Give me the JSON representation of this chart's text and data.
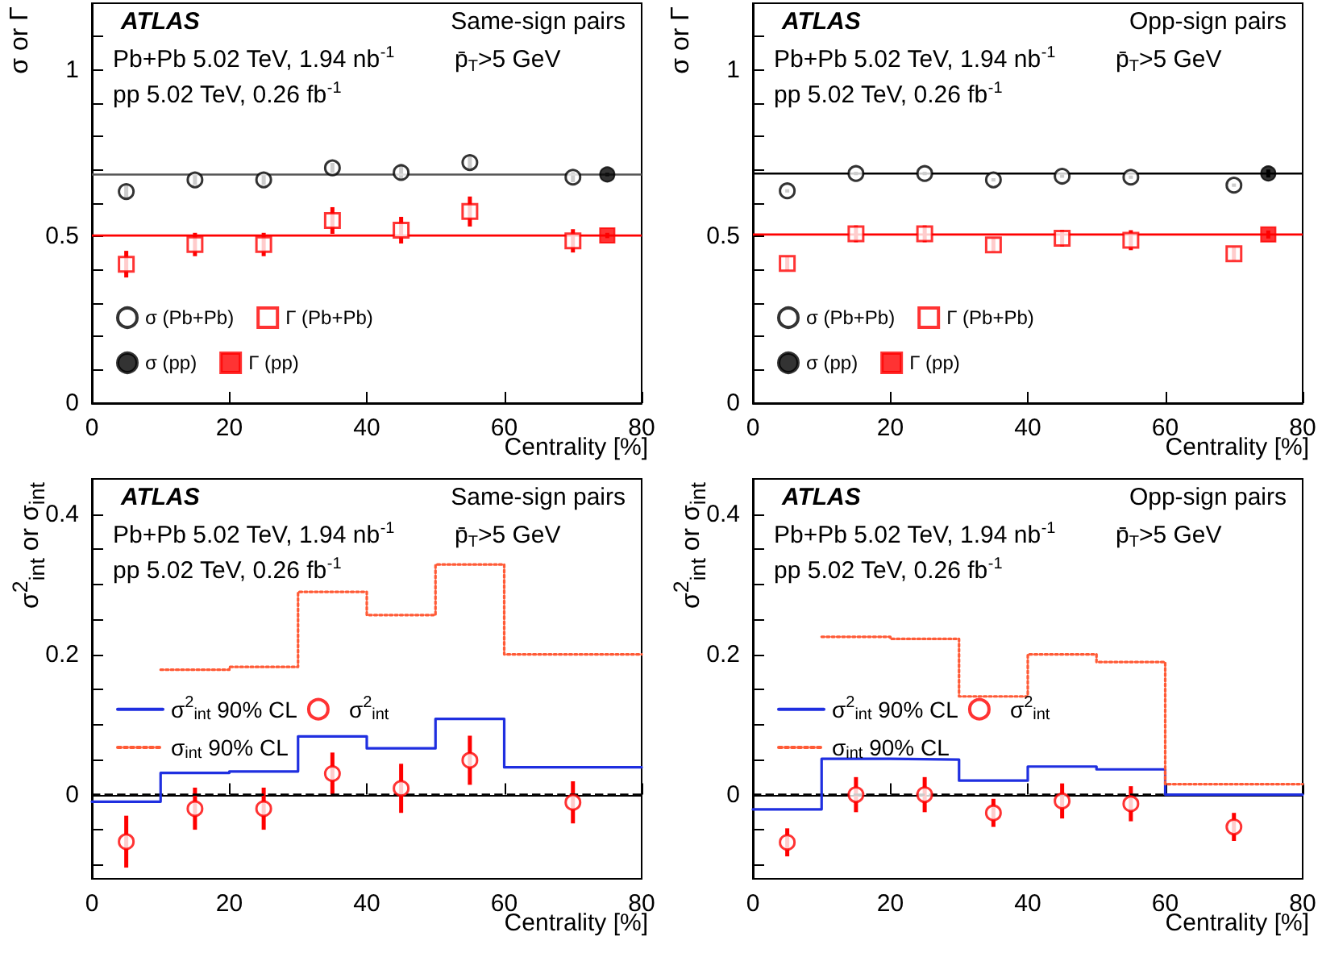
{
  "chart_data": [
    {
      "type": "scatter",
      "title": "Same-sign pairs",
      "ylabel": "σ or Γ",
      "xlabel": "Centrality [%]",
      "annotations": [
        "ATLAS",
        "Pb+Pb 5.02 TeV, 1.94 nb$^{-1}$",
        "p̄$_{T}$>5 GeV",
        "pp 5.02 TeV, 0.26 fb$^{-1}$"
      ],
      "xlim": [
        0,
        80
      ],
      "xticks": [
        0,
        20,
        40,
        60,
        80
      ],
      "ylim": [
        0,
        1.2
      ],
      "yticks": [
        0,
        {
          "value": 0.1,
          "label": null
        },
        {
          "value": 0.2,
          "label": null
        },
        {
          "value": 0.3,
          "label": null
        },
        {
          "value": 0.4,
          "label": null
        },
        0.5,
        {
          "value": 0.6,
          "label": null
        },
        {
          "value": 0.7,
          "label": null
        },
        {
          "value": 0.8,
          "label": null
        },
        {
          "value": 0.9,
          "label": null
        },
        1,
        {
          "value": 1.1,
          "label": null
        }
      ],
      "legend": "bottom left",
      "ref_lines": [
        {
          "axis": "y",
          "value": 0.686,
          "color": "#555555"
        },
        {
          "axis": "y",
          "value": 0.503,
          "color": "#ff0000"
        }
      ],
      "series": [
        {
          "name": "σ (Pb+Pb)",
          "marker": "circle",
          "color": "#000000",
          "x": [
            5,
            15,
            25,
            35,
            45,
            55,
            70
          ],
          "values": [
            0.635,
            0.67,
            0.67,
            0.706,
            0.692,
            0.722,
            0.678
          ],
          "errors": [
            0.02,
            0.015,
            0.015,
            0.015,
            0.02,
            0.02,
            0.015
          ]
        },
        {
          "name": "Γ (Pb+Pb)",
          "marker": "square",
          "color": "#ff0000",
          "x": [
            5,
            15,
            25,
            35,
            45,
            55,
            70
          ],
          "values": [
            0.417,
            0.476,
            0.476,
            0.548,
            0.519,
            0.575,
            0.487
          ],
          "errors": [
            0.04,
            0.035,
            0.035,
            0.04,
            0.04,
            0.045,
            0.035
          ]
        },
        {
          "name": "σ (pp)",
          "marker": "circle",
          "color": "#000000",
          "x": [
            75
          ],
          "values": [
            0.686
          ],
          "errors": [
            0.005
          ]
        },
        {
          "name": "Γ (pp)",
          "marker": "square",
          "color": "#ff0000",
          "x": [
            75
          ],
          "values": [
            0.503
          ],
          "errors": [
            0.008
          ]
        }
      ]
    },
    {
      "type": "scatter",
      "title": "Opp-sign pairs",
      "ylabel": "σ or Γ",
      "xlabel": "Centrality [%]",
      "annotations": [
        "ATLAS",
        "Pb+Pb 5.02 TeV, 1.94 nb$^{-1}$",
        "p̄$_{T}$>5 GeV",
        "pp 5.02 TeV, 0.26 fb$^{-1}$"
      ],
      "xlim": [
        0,
        80
      ],
      "xticks": [
        0,
        20,
        40,
        60,
        80
      ],
      "ylim": [
        0,
        1.2
      ],
      "yticks": [
        0,
        {
          "value": 0.1,
          "label": null
        },
        {
          "value": 0.2,
          "label": null
        },
        {
          "value": 0.3,
          "label": null
        },
        {
          "value": 0.4,
          "label": null
        },
        0.5,
        {
          "value": 0.6,
          "label": null
        },
        {
          "value": 0.7,
          "label": null
        },
        {
          "value": 0.8,
          "label": null
        },
        {
          "value": 0.9,
          "label": null
        },
        1,
        {
          "value": 1.1,
          "label": null
        }
      ],
      "legend": "bottom left",
      "ref_lines": [
        {
          "axis": "y",
          "value": 0.689,
          "color": "#000000"
        },
        {
          "axis": "y",
          "value": 0.506,
          "color": "#ff0000"
        }
      ],
      "series": [
        {
          "name": "σ (Pb+Pb)",
          "marker": "circle",
          "color": "#000000",
          "x": [
            5,
            15,
            25,
            35,
            45,
            55,
            70
          ],
          "values": [
            0.637,
            0.689,
            0.689,
            0.67,
            0.681,
            0.678,
            0.654
          ],
          "errors": [
            0.005,
            0.005,
            0.005,
            0.005,
            0.005,
            0.005,
            0.005
          ]
        },
        {
          "name": "Γ (Pb+Pb)",
          "marker": "square",
          "color": "#ff0000",
          "x": [
            5,
            15,
            25,
            35,
            45,
            55,
            70
          ],
          "values": [
            0.419,
            0.508,
            0.508,
            0.475,
            0.495,
            0.489,
            0.448
          ],
          "errors": [
            0.02,
            0.025,
            0.025,
            0.02,
            0.025,
            0.03,
            0.02
          ]
        },
        {
          "name": "σ (pp)",
          "marker": "circle",
          "color": "#000000",
          "x": [
            75
          ],
          "values": [
            0.689
          ],
          "errors": [
            0.012
          ]
        },
        {
          "name": "Γ (pp)",
          "marker": "square",
          "color": "#ff0000",
          "x": [
            75
          ],
          "values": [
            0.506
          ],
          "errors": [
            0.012
          ]
        }
      ]
    },
    {
      "type": "scatter",
      "title": "Same-sign pairs",
      "ylabel": "σ$^{2}$$_{int}$ or σ$_{int}$",
      "xlabel": "Centrality [%]",
      "annotations": [
        "ATLAS",
        "Pb+Pb 5.02 TeV, 1.94 nb$^{-1}$",
        "p̄$_{T}$>5 GeV",
        "pp 5.02 TeV, 0.26 fb$^{-1}$"
      ],
      "xlim": [
        0,
        80
      ],
      "xticks": [
        0,
        20,
        40,
        60,
        80
      ],
      "ylim": [
        -0.12,
        0.45
      ],
      "yticks": [
        {
          "value": -0.1,
          "label": null
        },
        {
          "value": -0.05,
          "label": null
        },
        0,
        {
          "value": 0.05,
          "label": null
        },
        {
          "value": 0.1,
          "label": null
        },
        {
          "value": 0.15,
          "label": null
        },
        0.2,
        {
          "value": 0.25,
          "label": null
        },
        {
          "value": 0.3,
          "label": null
        },
        {
          "value": 0.35,
          "label": null
        },
        0.4
      ],
      "legend": "left",
      "ref_lines": [
        {
          "axis": "y",
          "value": 0,
          "color": "#000000",
          "line_style": "dashed"
        }
      ],
      "series": [
        {
          "name": "σ$^{2}$$_{int}$ 90% CL",
          "type": "step",
          "line_style": "solid",
          "color": "#1f2fe0",
          "x": [
            0,
            10,
            20,
            30,
            40,
            50,
            60,
            80
          ],
          "values": [
            -0.01,
            0.031,
            0.033,
            0.083,
            0.066,
            0.108,
            0.039,
            0.039
          ]
        },
        {
          "name": "σ$^{2}$$_{int}$",
          "marker": "circle",
          "color": "#ff0000",
          "x": [
            5,
            15,
            25,
            35,
            45,
            55,
            70
          ],
          "values": [
            -0.067,
            -0.02,
            -0.02,
            0.03,
            0.009,
            0.049,
            -0.011
          ],
          "errors": [
            0.037,
            0.03,
            0.03,
            0.03,
            0.035,
            0.035,
            0.03
          ]
        },
        {
          "name": "σ$_{int}$ 90% CL",
          "type": "step",
          "line_style": "dotted",
          "color": "#ff5a36",
          "x": [
            10,
            20,
            30,
            40,
            50,
            60,
            80
          ],
          "values": [
            0.178,
            0.182,
            0.289,
            0.256,
            0.328,
            0.2,
            0.2
          ]
        }
      ]
    },
    {
      "type": "scatter",
      "title": "Opp-sign pairs",
      "ylabel": "σ$^{2}$$_{int}$ or σ$_{int}$",
      "xlabel": "Centrality [%]",
      "annotations": [
        "ATLAS",
        "Pb+Pb 5.02 TeV, 1.94 nb$^{-1}$",
        "p̄$_{T}$>5 GeV",
        "pp 5.02 TeV, 0.26 fb$^{-1}$"
      ],
      "xlim": [
        0,
        80
      ],
      "xticks": [
        0,
        20,
        40,
        60,
        80
      ],
      "ylim": [
        -0.12,
        0.45
      ],
      "yticks": [
        {
          "value": -0.1,
          "label": null
        },
        {
          "value": -0.05,
          "label": null
        },
        0,
        {
          "value": 0.05,
          "label": null
        },
        {
          "value": 0.1,
          "label": null
        },
        {
          "value": 0.15,
          "label": null
        },
        0.2,
        {
          "value": 0.25,
          "label": null
        },
        {
          "value": 0.3,
          "label": null
        },
        {
          "value": 0.35,
          "label": null
        },
        0.4
      ],
      "legend": "left",
      "ref_lines": [
        {
          "axis": "y",
          "value": 0,
          "color": "#000000",
          "line_style": "dashed"
        }
      ],
      "series": [
        {
          "name": "σ$^{2}$$_{int}$ 90% CL",
          "type": "step",
          "line_style": "solid",
          "color": "#1f2fe0",
          "x": [
            0,
            10,
            20,
            30,
            40,
            50,
            60,
            80
          ],
          "values": [
            -0.021,
            0.051,
            0.05,
            0.02,
            0.04,
            0.036,
            0,
            0
          ]
        },
        {
          "name": "σ$^{2}$$_{int}$",
          "marker": "circle",
          "color": "#ff0000",
          "x": [
            5,
            15,
            25,
            35,
            45,
            55,
            70
          ],
          "values": [
            -0.068,
            0,
            0,
            -0.026,
            -0.009,
            -0.013,
            -0.046
          ],
          "errors": [
            0.02,
            0.025,
            0.025,
            0.02,
            0.025,
            0.025,
            0.02
          ]
        },
        {
          "name": "σ$_{int}$ 90% CL",
          "type": "step",
          "line_style": "dotted",
          "color": "#ff5a36",
          "x": [
            10,
            20,
            30,
            40,
            50,
            60,
            80
          ],
          "values": [
            0.225,
            0.222,
            0.14,
            0.2,
            0.189,
            0.015,
            0.015
          ]
        }
      ]
    }
  ]
}
